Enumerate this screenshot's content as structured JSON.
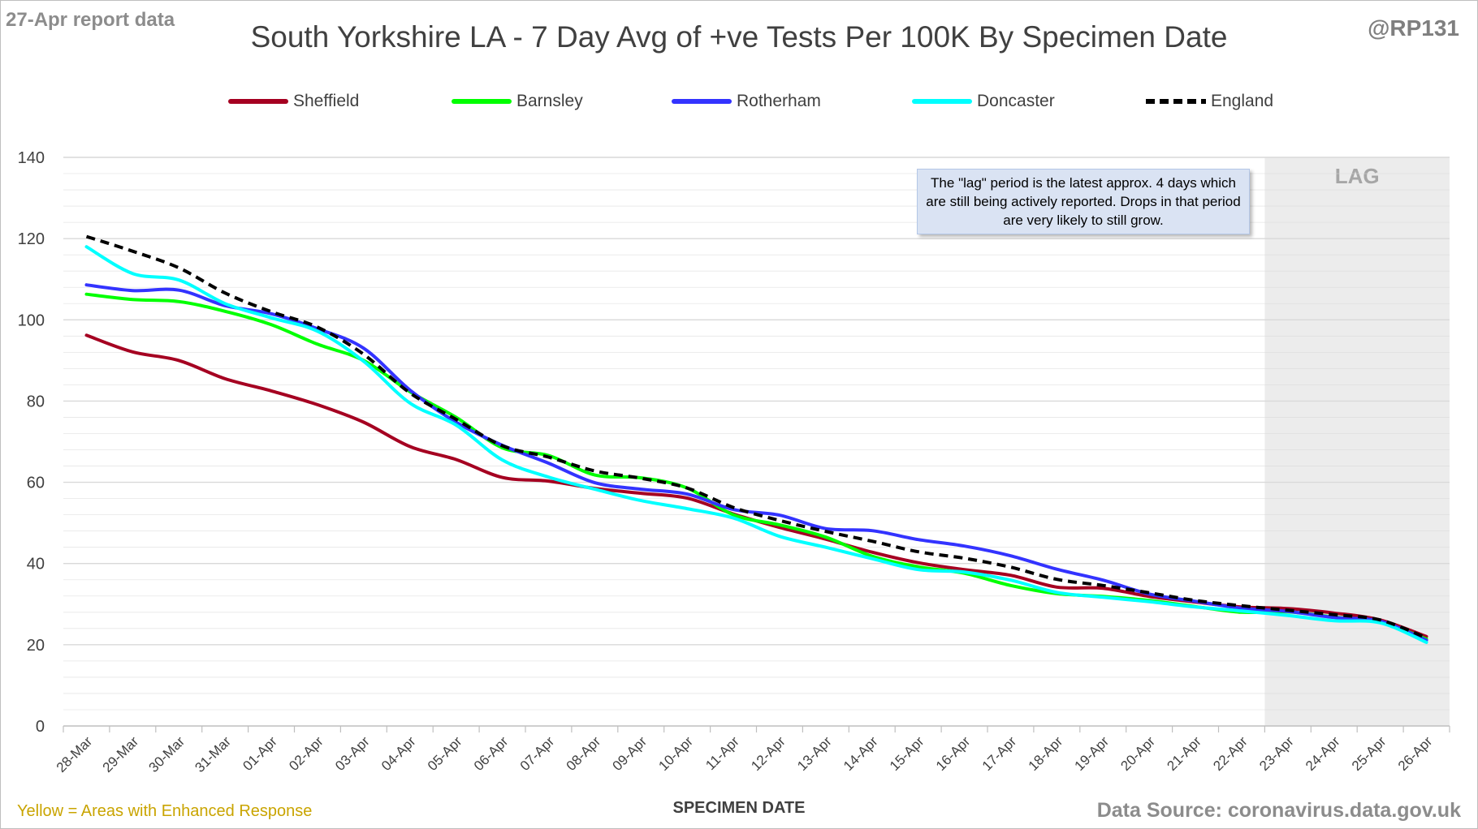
{
  "header": {
    "report_date": "27-Apr report data",
    "handle": "@RP131"
  },
  "footer": {
    "note": "Yellow = Areas with Enhanced Response",
    "source": "Data Source: coronavirus.data.gov.uk"
  },
  "annotation": "The \"lag\" period is the latest approx. 4 days which are still being actively reported. Drops in that period are very likely to still grow.",
  "colors": {
    "gridline": "#d9d9d9",
    "lag_shade": "#ececec",
    "lag_label": "#a6a6a6",
    "axis_text": "#404040"
  },
  "chart_data": {
    "type": "line",
    "title": "South Yorkshire LA - 7 Day Avg of +ve Tests Per 100K By Specimen Date",
    "xlabel": "SPECIMEN DATE",
    "ylabel": "",
    "ylim": [
      0,
      140
    ],
    "yticks": [
      0,
      20,
      40,
      60,
      80,
      100,
      120,
      140
    ],
    "grid": true,
    "legend_position": "top",
    "lag_label": "LAG",
    "lag_start": "23-Apr",
    "x": [
      "28-Mar",
      "29-Mar",
      "30-Mar",
      "31-Mar",
      "01-Apr",
      "02-Apr",
      "03-Apr",
      "04-Apr",
      "05-Apr",
      "06-Apr",
      "07-Apr",
      "08-Apr",
      "09-Apr",
      "10-Apr",
      "11-Apr",
      "12-Apr",
      "13-Apr",
      "14-Apr",
      "15-Apr",
      "16-Apr",
      "17-Apr",
      "18-Apr",
      "19-Apr",
      "20-Apr",
      "21-Apr",
      "22-Apr",
      "23-Apr",
      "24-Apr",
      "25-Apr",
      "26-Apr"
    ],
    "series": [
      {
        "name": "Sheffield",
        "color": "#a50021",
        "dashed": false,
        "values": [
          96.2,
          92.1,
          90.0,
          85.5,
          82.5,
          79.1,
          74.8,
          68.8,
          65.6,
          61.2,
          60.3,
          58.5,
          57.3,
          56.1,
          52.2,
          48.9,
          46.0,
          42.8,
          40.2,
          38.5,
          37.1,
          34.2,
          33.9,
          31.9,
          30.5,
          29.3,
          28.9,
          27.8,
          26.1,
          22.0
        ]
      },
      {
        "name": "Barnsley",
        "color": "#00ff00",
        "dashed": false,
        "values": [
          106.3,
          105.0,
          104.5,
          102.1,
          98.8,
          94.0,
          90.0,
          82.3,
          76.0,
          68.5,
          66.6,
          61.8,
          61.1,
          58.6,
          52.0,
          49.5,
          46.5,
          41.8,
          39.2,
          37.6,
          34.6,
          32.6,
          31.9,
          30.9,
          29.4,
          28.0,
          28.1,
          26.8,
          25.6,
          21.4
        ]
      },
      {
        "name": "Rotherham",
        "color": "#3333ff",
        "dashed": false,
        "values": [
          108.6,
          107.2,
          107.3,
          103.5,
          101.5,
          97.8,
          93.0,
          82.7,
          74.8,
          69.1,
          64.7,
          59.9,
          58.3,
          57.1,
          53.3,
          51.9,
          48.6,
          48.1,
          45.9,
          44.3,
          41.9,
          38.6,
          35.9,
          32.5,
          30.7,
          29.0,
          28.2,
          26.7,
          25.8,
          21.1
        ]
      },
      {
        "name": "Doncaster",
        "color": "#00ffff",
        "dashed": false,
        "values": [
          118.0,
          111.4,
          109.8,
          104.0,
          100.5,
          97.2,
          89.8,
          79.5,
          74.1,
          65.5,
          61.3,
          58.3,
          55.5,
          53.5,
          51.2,
          46.7,
          44.0,
          41.2,
          38.5,
          37.9,
          35.9,
          32.9,
          31.7,
          30.6,
          29.3,
          28.3,
          27.2,
          25.9,
          25.4,
          20.6
        ]
      },
      {
        "name": "England",
        "color": "#000000",
        "dashed": true,
        "values": [
          120.5,
          116.9,
          112.8,
          106.6,
          102.0,
          98.2,
          91.5,
          82.0,
          75.5,
          69.0,
          66.2,
          62.8,
          61.0,
          58.6,
          53.8,
          50.6,
          47.9,
          45.5,
          42.9,
          41.3,
          39.1,
          36.1,
          34.6,
          32.8,
          30.9,
          29.6,
          28.5,
          27.4,
          26.1,
          21.7
        ]
      }
    ]
  }
}
